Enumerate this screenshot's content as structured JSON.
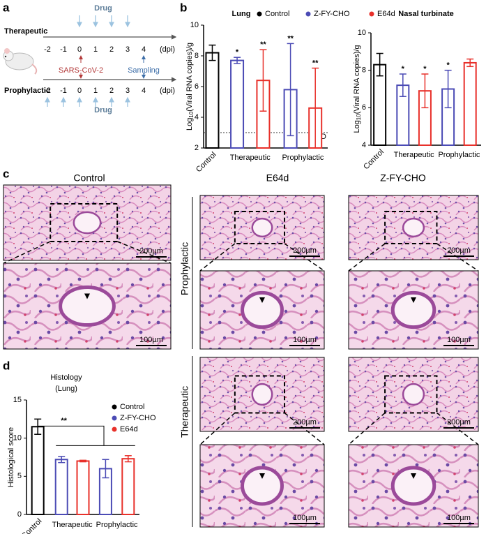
{
  "panel_labels": [
    "a",
    "b",
    "c",
    "d"
  ],
  "timeline": {
    "therapeutic_label": "Therapeutic",
    "prophylactic_label": "Prophylactic",
    "days": [
      "-2",
      "-1",
      "0",
      "1",
      "2",
      "3",
      "4"
    ],
    "unit": "(dpi)",
    "drug": "Drug",
    "infection": "SARS-CoV-2",
    "sampling": "Sampling"
  },
  "chart_data": [
    {
      "type": "bar",
      "title": "Lung",
      "y_label": [
        "Log",
        "10",
        "(Viral RNA copies)/g"
      ],
      "categories": [
        "Control",
        null,
        null,
        null,
        null
      ],
      "groups": [
        "Therapeutic",
        "Prophylactic"
      ],
      "values": [
        8.2,
        7.7,
        6.4,
        5.8,
        4.6
      ],
      "errors": [
        0.5,
        0.2,
        2.0,
        3.0,
        2.6
      ],
      "colors": [
        "#000000",
        "#4b4bb5",
        "#e8302a",
        "#4b4bb5",
        "#e8302a"
      ],
      "significance": [
        null,
        "*",
        "**",
        "**",
        "**"
      ],
      "lod": {
        "value": 3,
        "label": "LOD"
      },
      "legend": [
        {
          "name": "Control",
          "color": "#000000"
        },
        {
          "name": "Z-FY-CHO",
          "color": "#4b4bb5"
        },
        {
          "name": "E64d",
          "color": "#e8302a"
        }
      ],
      "ylim": [
        2,
        10
      ],
      "yticks": [
        2,
        4,
        6,
        8,
        10
      ]
    },
    {
      "type": "bar",
      "title": "Nasal turbinate",
      "y_label": [
        "Log",
        "10",
        "(Viral RNA copies)/g"
      ],
      "categories": [
        "Control",
        null,
        null,
        null,
        null
      ],
      "groups": [
        "Therapeutic",
        "Prophylactic"
      ],
      "values": [
        8.3,
        7.2,
        6.9,
        7.0,
        8.4
      ],
      "errors": [
        0.6,
        0.6,
        0.9,
        1.0,
        0.2
      ],
      "colors": [
        "#000000",
        "#4b4bb5",
        "#e8302a",
        "#4b4bb5",
        "#e8302a"
      ],
      "significance": [
        null,
        "*",
        "*",
        "*",
        null
      ],
      "ylim": [
        4,
        10
      ],
      "yticks": [
        4,
        6,
        8,
        10
      ]
    },
    {
      "type": "bar",
      "title": "Histology",
      "subtitle": "(Lung)",
      "y_label": [
        "Histological score"
      ],
      "categories": [
        "Control",
        null,
        null,
        null,
        null
      ],
      "groups": [
        "Therapeutic",
        "Prophylactic"
      ],
      "values": [
        11.5,
        7.2,
        7.0,
        6.0,
        7.3
      ],
      "errors": [
        1.0,
        0.4,
        0.1,
        1.2,
        0.4
      ],
      "colors": [
        "#000000",
        "#4b4bb5",
        "#e8302a",
        "#4b4bb5",
        "#e8302a"
      ],
      "bracket_label": "**",
      "legend": [
        {
          "name": "Control",
          "color": "#000000"
        },
        {
          "name": "Z-FY-CHO",
          "color": "#4b4bb5"
        },
        {
          "name": "E64d",
          "color": "#e8302a"
        }
      ],
      "ylim": [
        0,
        15
      ],
      "yticks": [
        0,
        5,
        10,
        15
      ]
    }
  ],
  "histology": {
    "columns": [
      "Control",
      "E64d",
      "Z-FY-CHO"
    ],
    "rows": [
      "Prophylactic",
      "Therapeutic"
    ],
    "scale_200": "200µm",
    "scale_100": "100µm"
  }
}
